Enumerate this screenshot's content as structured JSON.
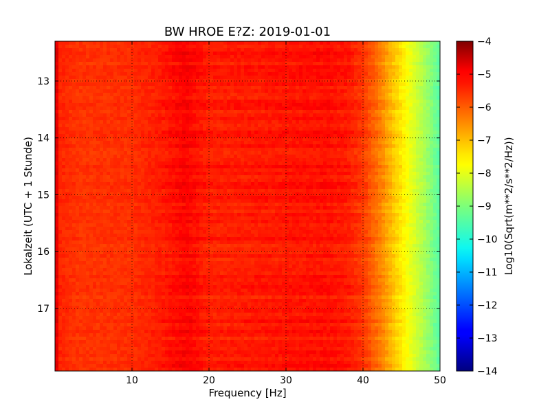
{
  "chart_data": {
    "type": "heatmap",
    "title": "BW HROE E?Z: 2019-01-01",
    "xlabel": "Frequency [Hz]",
    "ylabel": "Lokalzeit (UTC + 1 Stunde)",
    "xlim": [
      0,
      50
    ],
    "ylim": [
      12.3,
      18.1
    ],
    "y_inverted": true,
    "x_ticks": [
      10,
      20,
      30,
      40,
      50
    ],
    "x_tick_labels": [
      "10",
      "20",
      "30",
      "40",
      "50"
    ],
    "y_ticks": [
      13,
      14,
      15,
      16,
      17
    ],
    "y_tick_labels": [
      "13",
      "14",
      "15",
      "16",
      "17"
    ],
    "grid": true,
    "colormap": "jet",
    "colorbar": {
      "label": "Log10(Sqrt(m**2/s**2/Hz))",
      "range": [
        -14,
        -4
      ],
      "ticks": [
        -4,
        -5,
        -6,
        -7,
        -8,
        -9,
        -10,
        -11,
        -12,
        -13,
        -14
      ],
      "tick_labels": [
        "−4",
        "−5",
        "−6",
        "−7",
        "−8",
        "−9",
        "−10",
        "−11",
        "−12",
        "−13",
        "−14"
      ]
    },
    "frequency_profile": {
      "frequency_hz": [
        0,
        0.6,
        3,
        10,
        14,
        17,
        20,
        25,
        30,
        35,
        38,
        40,
        42,
        44,
        46,
        48,
        49.5,
        50
      ],
      "log_amplitude": [
        -4.7,
        -5.6,
        -5.75,
        -5.7,
        -5.5,
        -5.25,
        -5.55,
        -5.5,
        -5.45,
        -5.4,
        -5.5,
        -5.8,
        -6.4,
        -7.2,
        -7.9,
        -8.6,
        -9.2,
        -9.4
      ]
    }
  },
  "colors": {
    "background": "#ffffff",
    "axes": "#000000"
  }
}
